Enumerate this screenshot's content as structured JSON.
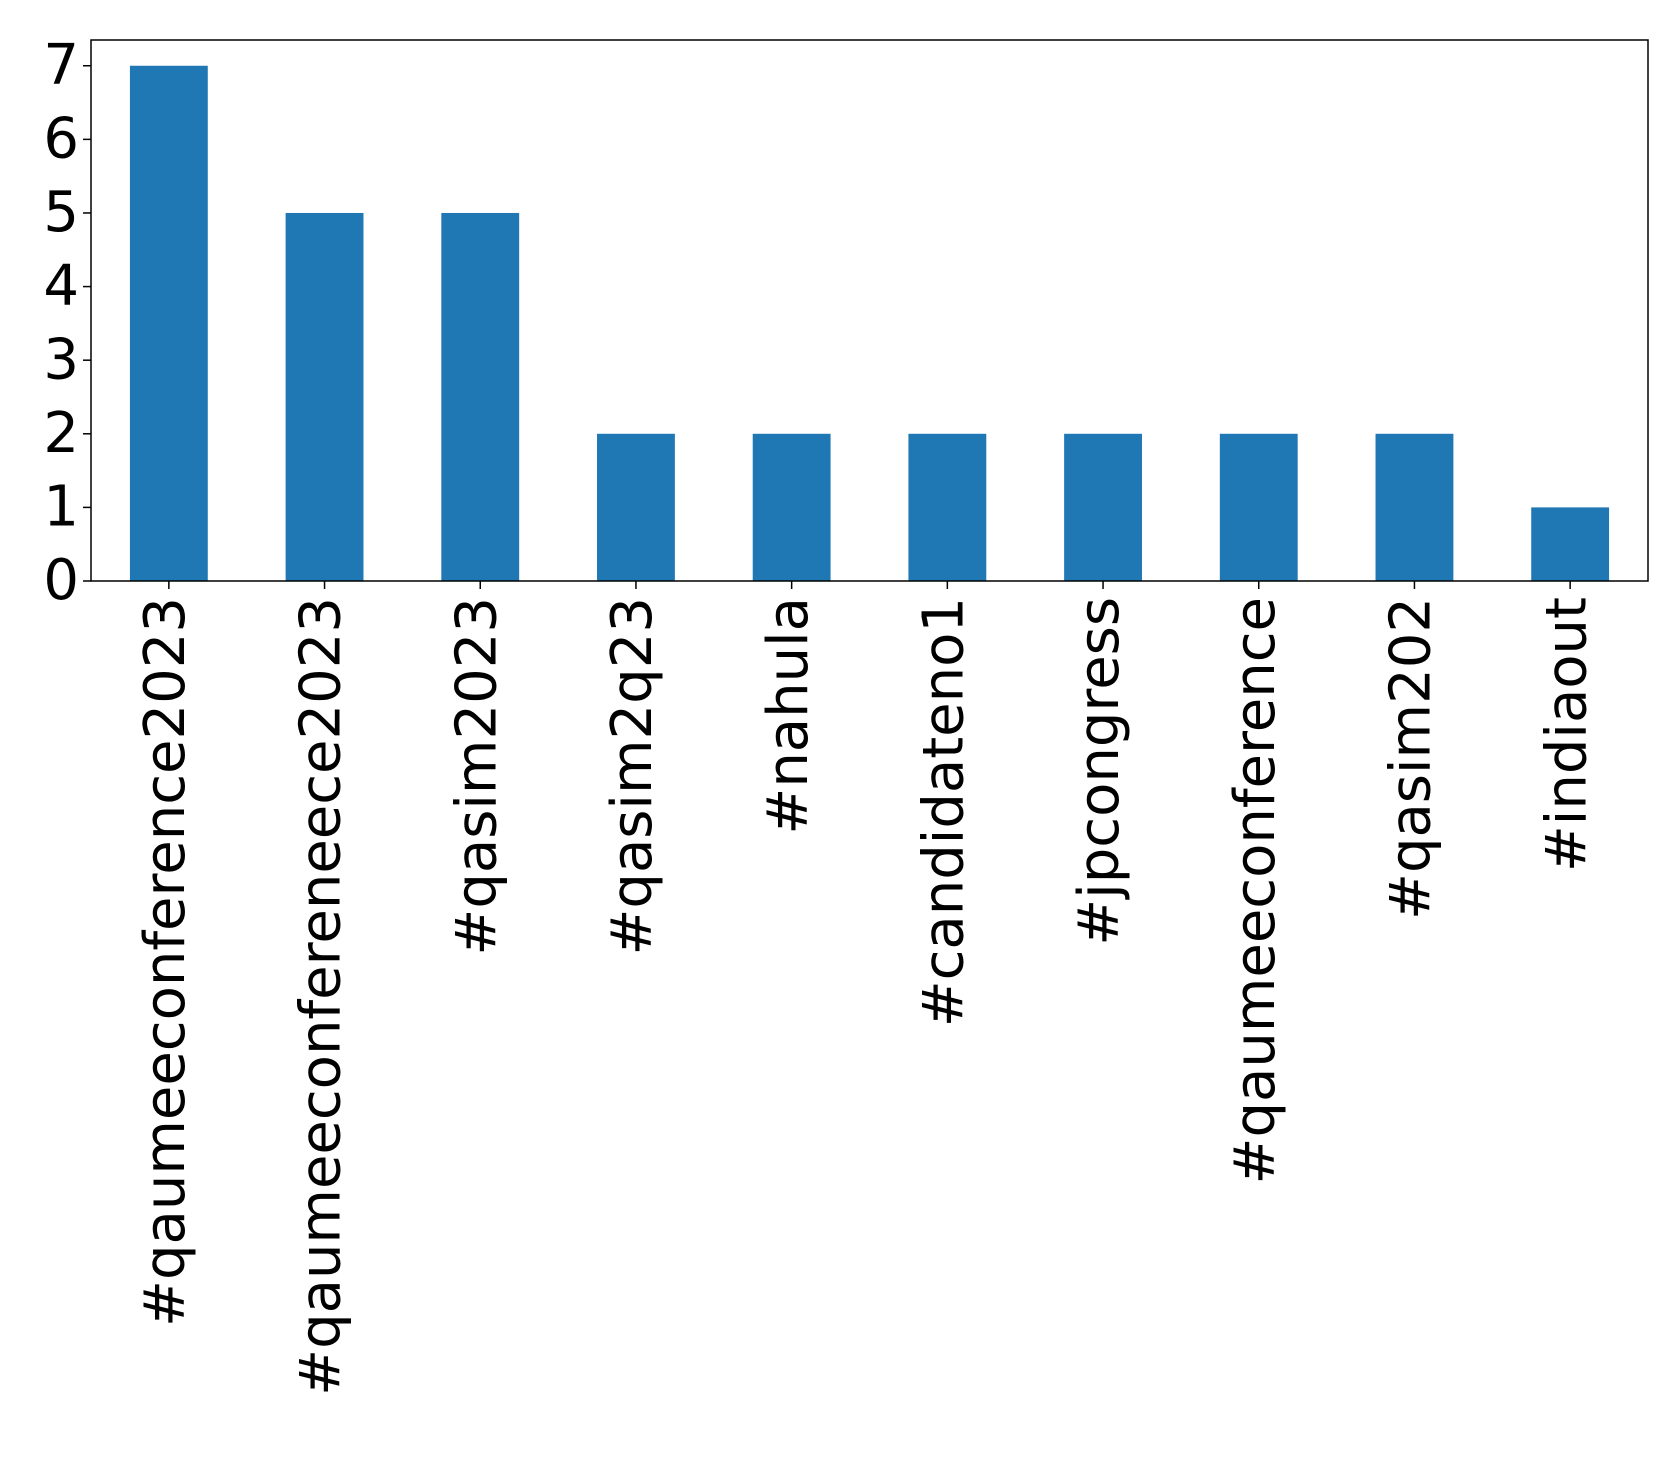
{
  "chart_data": {
    "type": "bar",
    "categories": [
      "#qaumeeconference2023",
      "#qaumeeconfereneece2023",
      "#qasim2023",
      "#qasim2q23",
      "#nahula",
      "#candidateno1",
      "#jpcongress",
      "#qaumeeconference",
      "#qasim202",
      "#indiaout"
    ],
    "values": [
      7,
      5,
      5,
      2,
      2,
      2,
      2,
      2,
      2,
      1
    ],
    "color": "#1f77b4",
    "ylim": [
      0,
      7.35
    ],
    "yticks": [
      0,
      1,
      2,
      3,
      4,
      5,
      6,
      7
    ],
    "grid": false
  }
}
